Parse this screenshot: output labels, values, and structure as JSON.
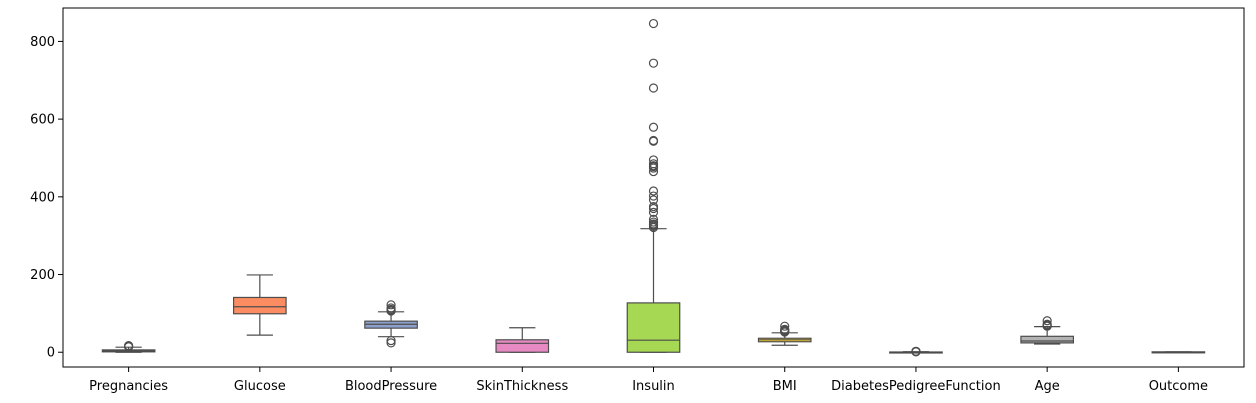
{
  "chart_data": {
    "type": "box",
    "title": "",
    "xlabel": "",
    "ylabel": "",
    "ylim": [
      -38,
      886
    ],
    "yticks": [
      0,
      200,
      400,
      600,
      800
    ],
    "ytick_labels": [
      "0",
      "200",
      "400",
      "600",
      "800"
    ],
    "grid": false,
    "legend": "none",
    "categories": [
      "Pregnancies",
      "Glucose",
      "BloodPressure",
      "SkinThickness",
      "Insulin",
      "BMI",
      "DiabetesPedigreeFunction",
      "Age",
      "Outcome"
    ],
    "boxes": [
      {
        "category": "Pregnancies",
        "color": "#66c2a5",
        "whisker_low": 0,
        "q1": 1,
        "median": 3,
        "q3": 6,
        "whisker_high": 13,
        "outliers": [
          14,
          15,
          17
        ]
      },
      {
        "category": "Glucose",
        "color": "#fc8d62",
        "whisker_low": 44,
        "q1": 99,
        "median": 117,
        "q3": 141,
        "whisker_high": 199,
        "outliers": []
      },
      {
        "category": "BloodPressure",
        "color": "#8da0cb",
        "whisker_low": 40,
        "q1": 62,
        "median": 72,
        "q3": 80,
        "whisker_high": 104,
        "outliers": [
          24,
          30,
          106,
          108,
          110,
          114,
          122
        ]
      },
      {
        "category": "SkinThickness",
        "color": "#e78ac3",
        "whisker_low": 0,
        "q1": 0,
        "median": 23,
        "q3": 32,
        "whisker_high": 63,
        "outliers": []
      },
      {
        "category": "Insulin",
        "color": "#a6d854",
        "whisker_low": 0,
        "q1": 0,
        "median": 31,
        "q3": 127,
        "whisker_high": 318,
        "outliers": [
          321,
          325,
          328,
          330,
          335,
          342,
          360,
          370,
          375,
          392,
          402,
          415,
          465,
          474,
          478,
          480,
          485,
          495,
          543,
          545,
          579,
          680,
          744,
          846
        ]
      },
      {
        "category": "BMI",
        "color": "#ffd92f",
        "whisker_low": 18,
        "q1": 27,
        "median": 32,
        "q3": 36,
        "whisker_high": 50,
        "outliers": [
          52,
          53,
          55,
          57,
          59,
          67
        ]
      },
      {
        "category": "DiabetesPedigreeFunction",
        "color": "#e5c494",
        "whisker_low": 0.08,
        "q1": 0.24,
        "median": 0.37,
        "q3": 0.63,
        "whisker_high": 1.19,
        "outliers": [
          1.2,
          1.5,
          1.8,
          2.1,
          2.4
        ]
      },
      {
        "category": "Age",
        "color": "#b3b3b3",
        "whisker_low": 21,
        "q1": 24,
        "median": 29,
        "q3": 41,
        "whisker_high": 66,
        "outliers": [
          67,
          69,
          70,
          72,
          81
        ]
      },
      {
        "category": "Outcome",
        "color": "#66c2a5",
        "whisker_low": 0,
        "q1": 0,
        "median": 0,
        "q3": 1,
        "whisker_high": 1,
        "outliers": []
      }
    ]
  }
}
